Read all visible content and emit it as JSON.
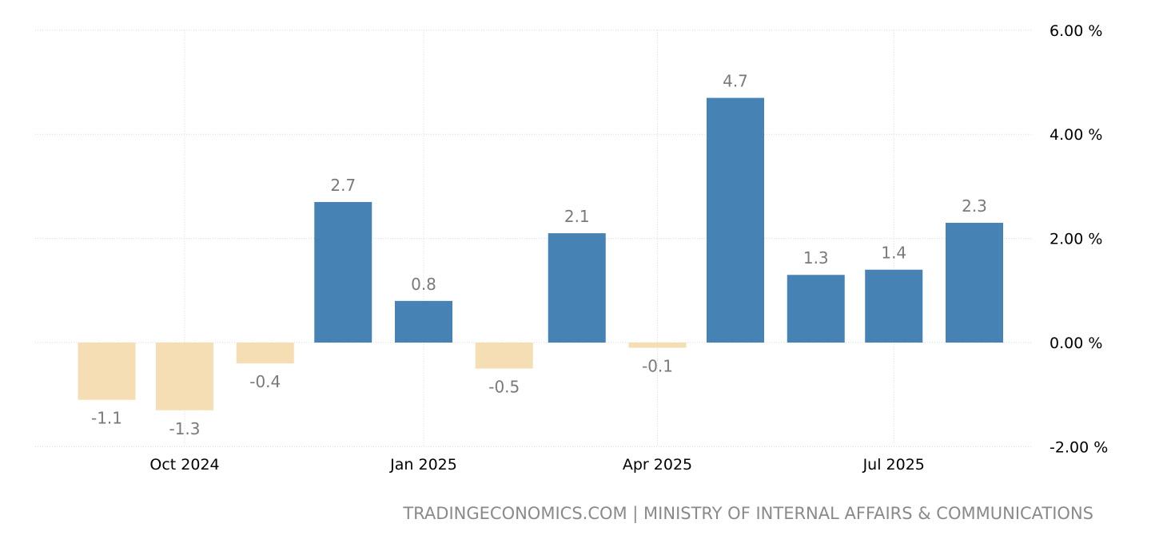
{
  "chart_data": {
    "type": "bar",
    "title": "",
    "xlabel": "",
    "ylabel": "",
    "categories": [
      "2024-09",
      "2024-10",
      "2024-11",
      "2024-12",
      "2025-01",
      "2025-02",
      "2025-03",
      "2025-04",
      "2025-05",
      "2025-06",
      "2025-07",
      "2025-08"
    ],
    "values": [
      -1.1,
      -1.3,
      -0.4,
      2.7,
      0.8,
      -0.5,
      2.1,
      -0.1,
      4.7,
      1.3,
      1.4,
      2.3
    ],
    "data_labels": [
      "-1.1",
      "-1.3",
      "-0.4",
      "2.7",
      "0.8",
      "-0.5",
      "2.1",
      "-0.1",
      "4.7",
      "1.3",
      "1.4",
      "2.3"
    ],
    "ylim": [
      -2,
      6
    ],
    "y_ticks": [
      {
        "value": 6,
        "label": "6.00 %"
      },
      {
        "value": 4,
        "label": "4.00 %"
      },
      {
        "value": 2,
        "label": "2.00 %"
      },
      {
        "value": 0,
        "label": "0.00 %"
      },
      {
        "value": -2,
        "label": "-2.00 %"
      }
    ],
    "x_ticks": [
      {
        "date": "2024-10",
        "label": "Oct 2024"
      },
      {
        "date": "2025-01",
        "label": "Jan 2025"
      },
      {
        "date": "2025-04",
        "label": "Apr 2025"
      },
      {
        "date": "2025-07",
        "label": "Jul 2025"
      }
    ],
    "grid": true,
    "y_axis_side": "right",
    "colors": {
      "positive": "#4682b4",
      "negative": "#f5deb3",
      "data_label": "#7a7a7a"
    }
  },
  "source": "TRADINGECONOMICS.COM | MINISTRY OF INTERNAL AFFAIRS & COMMUNICATIONS"
}
